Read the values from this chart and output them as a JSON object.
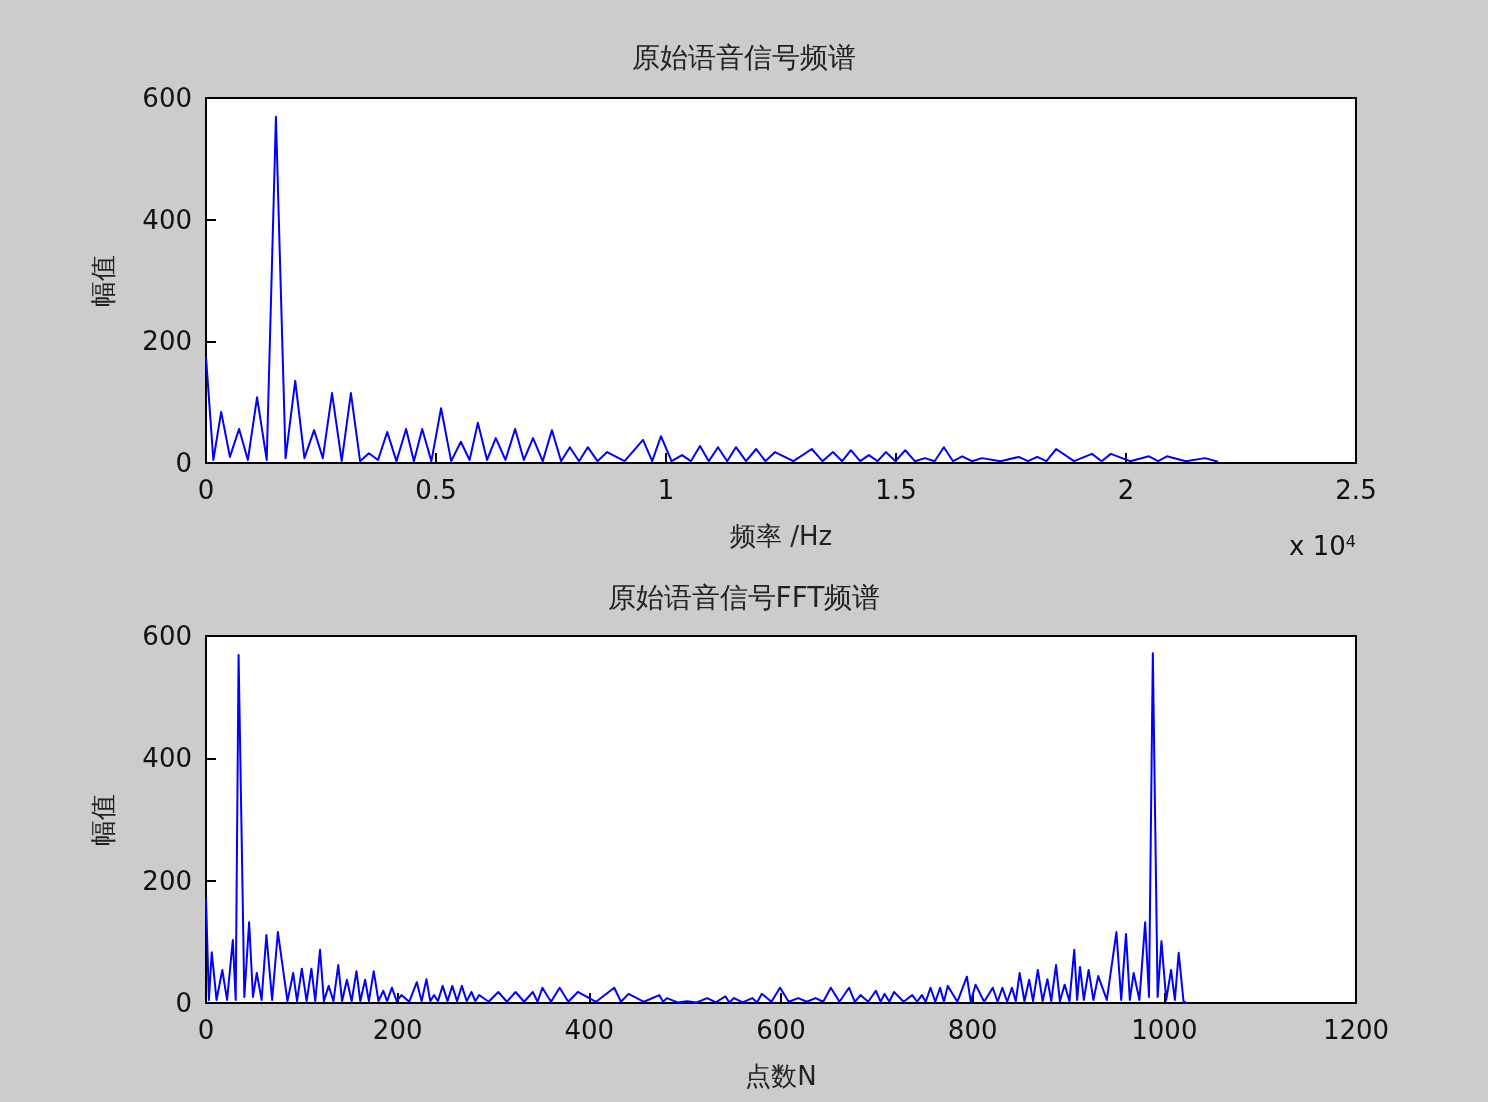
{
  "chart_data": [
    {
      "type": "line",
      "title": "原始语音信号频谱",
      "xlabel": "频率 /Hz",
      "ylabel": "幅值",
      "annotations": [
        "x 10$^{4}$"
      ],
      "xlim": [
        0,
        2.5
      ],
      "xticks": [
        0,
        0.5,
        1,
        1.5,
        2,
        2.5
      ],
      "ylim": [
        0,
        600
      ],
      "yticks": [
        0,
        200,
        400,
        600
      ],
      "grid": false,
      "marker": "none",
      "line_style": "solid",
      "series": [
        {
          "color": "#0000ff",
          "x": [
            0,
            0.016,
            0.033,
            0.052,
            0.072,
            0.091,
            0.111,
            0.132,
            0.152,
            0.173,
            0.194,
            0.214,
            0.235,
            0.254,
            0.274,
            0.295,
            0.315,
            0.335,
            0.354,
            0.374,
            0.394,
            0.414,
            0.435,
            0.452,
            0.47,
            0.49,
            0.511,
            0.533,
            0.554,
            0.573,
            0.591,
            0.611,
            0.63,
            0.651,
            0.672,
            0.691,
            0.711,
            0.732,
            0.752,
            0.772,
            0.791,
            0.811,
            0.83,
            0.851,
            0.872,
            0.91,
            0.95,
            0.97,
            0.989,
            1.012,
            1.035,
            1.054,
            1.074,
            1.093,
            1.113,
            1.133,
            1.152,
            1.174,
            1.196,
            1.216,
            1.237,
            1.277,
            1.317,
            1.34,
            1.363,
            1.383,
            1.402,
            1.422,
            1.441,
            1.46,
            1.478,
            1.499,
            1.52,
            1.541,
            1.563,
            1.584,
            1.604,
            1.624,
            1.644,
            1.665,
            1.687,
            1.727,
            1.767,
            1.787,
            1.807,
            1.827,
            1.848,
            1.887,
            1.926,
            1.947,
            1.967,
            2.009,
            2.05,
            2.07,
            2.089,
            2.13,
            2.172,
            2.2
          ],
          "values": [
            174,
            5,
            84,
            10,
            56,
            5,
            108,
            5,
            569,
            8,
            135,
            8,
            54,
            8,
            115,
            3,
            115,
            3,
            16,
            5,
            51,
            3,
            56,
            3,
            56,
            3,
            90,
            3,
            35,
            5,
            66,
            5,
            41,
            5,
            56,
            5,
            41,
            3,
            54,
            3,
            26,
            3,
            26,
            3,
            18,
            3,
            38,
            3,
            44,
            3,
            13,
            3,
            28,
            3,
            26,
            3,
            26,
            3,
            23,
            3,
            18,
            3,
            23,
            3,
            18,
            3,
            21,
            3,
            13,
            3,
            18,
            3,
            21,
            3,
            8,
            3,
            26,
            3,
            11,
            3,
            8,
            3,
            10,
            3,
            10,
            3,
            23,
            3,
            15,
            3,
            15,
            3,
            11,
            3,
            11,
            3,
            8,
            2
          ]
        }
      ]
    },
    {
      "type": "line",
      "title": "原始语音信号FFT频谱",
      "xlabel": "点数N",
      "ylabel": "幅值",
      "xlim": [
        0,
        1200
      ],
      "xticks": [
        0,
        200,
        400,
        600,
        800,
        1000,
        1200
      ],
      "ylim": [
        0,
        600
      ],
      "yticks": [
        0,
        200,
        400,
        600
      ],
      "grid": false,
      "marker": "none",
      "line_style": "solid",
      "series": [
        {
          "color": "#0000ff",
          "x": [
            0,
            3,
            6,
            11,
            17,
            22,
            28,
            31,
            34,
            40,
            45,
            49,
            53,
            58,
            63,
            69,
            75,
            85,
            91,
            95,
            100,
            105,
            110,
            114,
            119,
            123,
            128,
            133,
            138,
            142,
            147,
            152,
            157,
            161,
            166,
            170,
            175,
            180,
            185,
            189,
            194,
            199,
            204,
            212,
            220,
            225,
            230,
            234,
            238,
            242,
            247,
            252,
            257,
            262,
            267,
            272,
            277,
            281,
            285,
            295,
            305,
            314,
            323,
            332,
            341,
            346,
            351,
            360,
            369,
            378,
            388,
            407,
            426,
            433,
            441,
            457,
            473,
            477,
            481,
            492,
            502,
            512,
            523,
            532,
            542,
            546,
            551,
            560,
            570,
            575,
            580,
            590,
            599,
            608,
            618,
            627,
            636,
            644,
            652,
            661,
            671,
            677,
            683,
            691,
            699,
            704,
            708,
            713,
            718,
            728,
            737,
            742,
            747,
            751,
            756,
            761,
            766,
            770,
            774,
            784,
            794,
            798,
            803,
            812,
            821,
            826,
            831,
            836,
            841,
            845,
            849,
            854,
            859,
            863,
            868,
            873,
            878,
            882,
            887,
            891,
            896,
            901,
            906,
            909,
            912,
            916,
            921,
            926,
            931,
            940,
            950,
            955,
            960,
            964,
            968,
            974,
            980,
            984,
            988,
            993,
            997,
            1002,
            1007,
            1011,
            1015,
            1020,
            1023
          ],
          "values": [
            172,
            5,
            83,
            5,
            54,
            5,
            103,
            5,
            569,
            10,
            132,
            10,
            49,
            5,
            111,
            5,
            116,
            3,
            49,
            3,
            56,
            3,
            56,
            3,
            87,
            3,
            28,
            3,
            62,
            3,
            38,
            3,
            52,
            3,
            38,
            3,
            52,
            3,
            20,
            3,
            25,
            3,
            13,
            2,
            34,
            3,
            39,
            3,
            13,
            3,
            28,
            3,
            28,
            3,
            28,
            3,
            18,
            3,
            13,
            2,
            18,
            2,
            18,
            2,
            18,
            2,
            25,
            2,
            25,
            2,
            18,
            2,
            25,
            2,
            15,
            2,
            13,
            2,
            8,
            1,
            3,
            1,
            8,
            1,
            11,
            1,
            8,
            1,
            8,
            1,
            15,
            2,
            25,
            2,
            8,
            2,
            8,
            2,
            25,
            2,
            25,
            2,
            13,
            2,
            20,
            2,
            15,
            2,
            18,
            2,
            13,
            2,
            13,
            2,
            25,
            2,
            25,
            2,
            28,
            2,
            43,
            2,
            30,
            2,
            25,
            2,
            25,
            2,
            25,
            3,
            49,
            3,
            38,
            3,
            54,
            3,
            39,
            3,
            62,
            3,
            30,
            3,
            87,
            5,
            59,
            5,
            54,
            5,
            44,
            5,
            116,
            5,
            113,
            5,
            49,
            5,
            132,
            10,
            572,
            10,
            101,
            5,
            54,
            5,
            82,
            3,
            0
          ]
        }
      ]
    }
  ]
}
